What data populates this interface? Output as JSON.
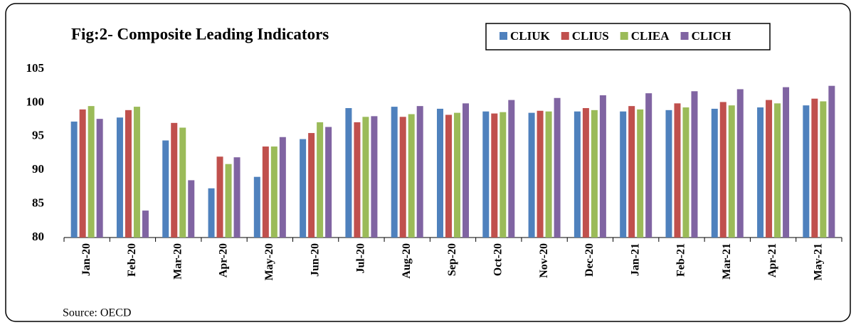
{
  "chart_data": {
    "type": "bar",
    "title": "Fig:2- Composite Leading Indicators",
    "source": "Source: OECD",
    "categories": [
      "Jan-20",
      "Feb-20",
      "Mar-20",
      "Apr-20",
      "May-20",
      "Jun-20",
      "Jul-20",
      "Aug-20",
      "Sep-20",
      "Oct-20",
      "Nov-20",
      "Dec-20",
      "Jan-21",
      "Feb-21",
      "Mar-21",
      "Apr-21",
      "May-21"
    ],
    "series": [
      {
        "name": "CLIUK",
        "color": "#4f81bd",
        "values": [
          97.2,
          97.8,
          94.4,
          87.3,
          89.0,
          94.6,
          99.2,
          99.4,
          99.1,
          98.7,
          98.5,
          98.7,
          98.7,
          98.9,
          99.1,
          99.3,
          99.6
        ]
      },
      {
        "name": "CLIUS",
        "color": "#c0504d",
        "values": [
          99.0,
          98.9,
          97.0,
          92.0,
          93.5,
          95.5,
          97.1,
          97.9,
          98.2,
          98.4,
          98.8,
          99.2,
          99.5,
          99.9,
          100.1,
          100.4,
          100.6
        ]
      },
      {
        "name": "CLIEA",
        "color": "#9bbb59",
        "values": [
          99.5,
          99.4,
          96.3,
          90.9,
          93.5,
          97.1,
          97.9,
          98.3,
          98.5,
          98.6,
          98.7,
          98.9,
          99.0,
          99.3,
          99.6,
          99.9,
          100.2
        ]
      },
      {
        "name": "CLICH",
        "color": "#8064a2",
        "values": [
          97.6,
          84.0,
          88.5,
          91.9,
          94.9,
          96.4,
          98.0,
          99.5,
          99.9,
          100.4,
          100.7,
          101.1,
          101.4,
          101.7,
          102.0,
          102.3,
          102.5
        ]
      }
    ],
    "ylim": [
      80,
      105
    ],
    "yticks": [
      80,
      85,
      90,
      95,
      100,
      105
    ],
    "legend": "top-right"
  }
}
